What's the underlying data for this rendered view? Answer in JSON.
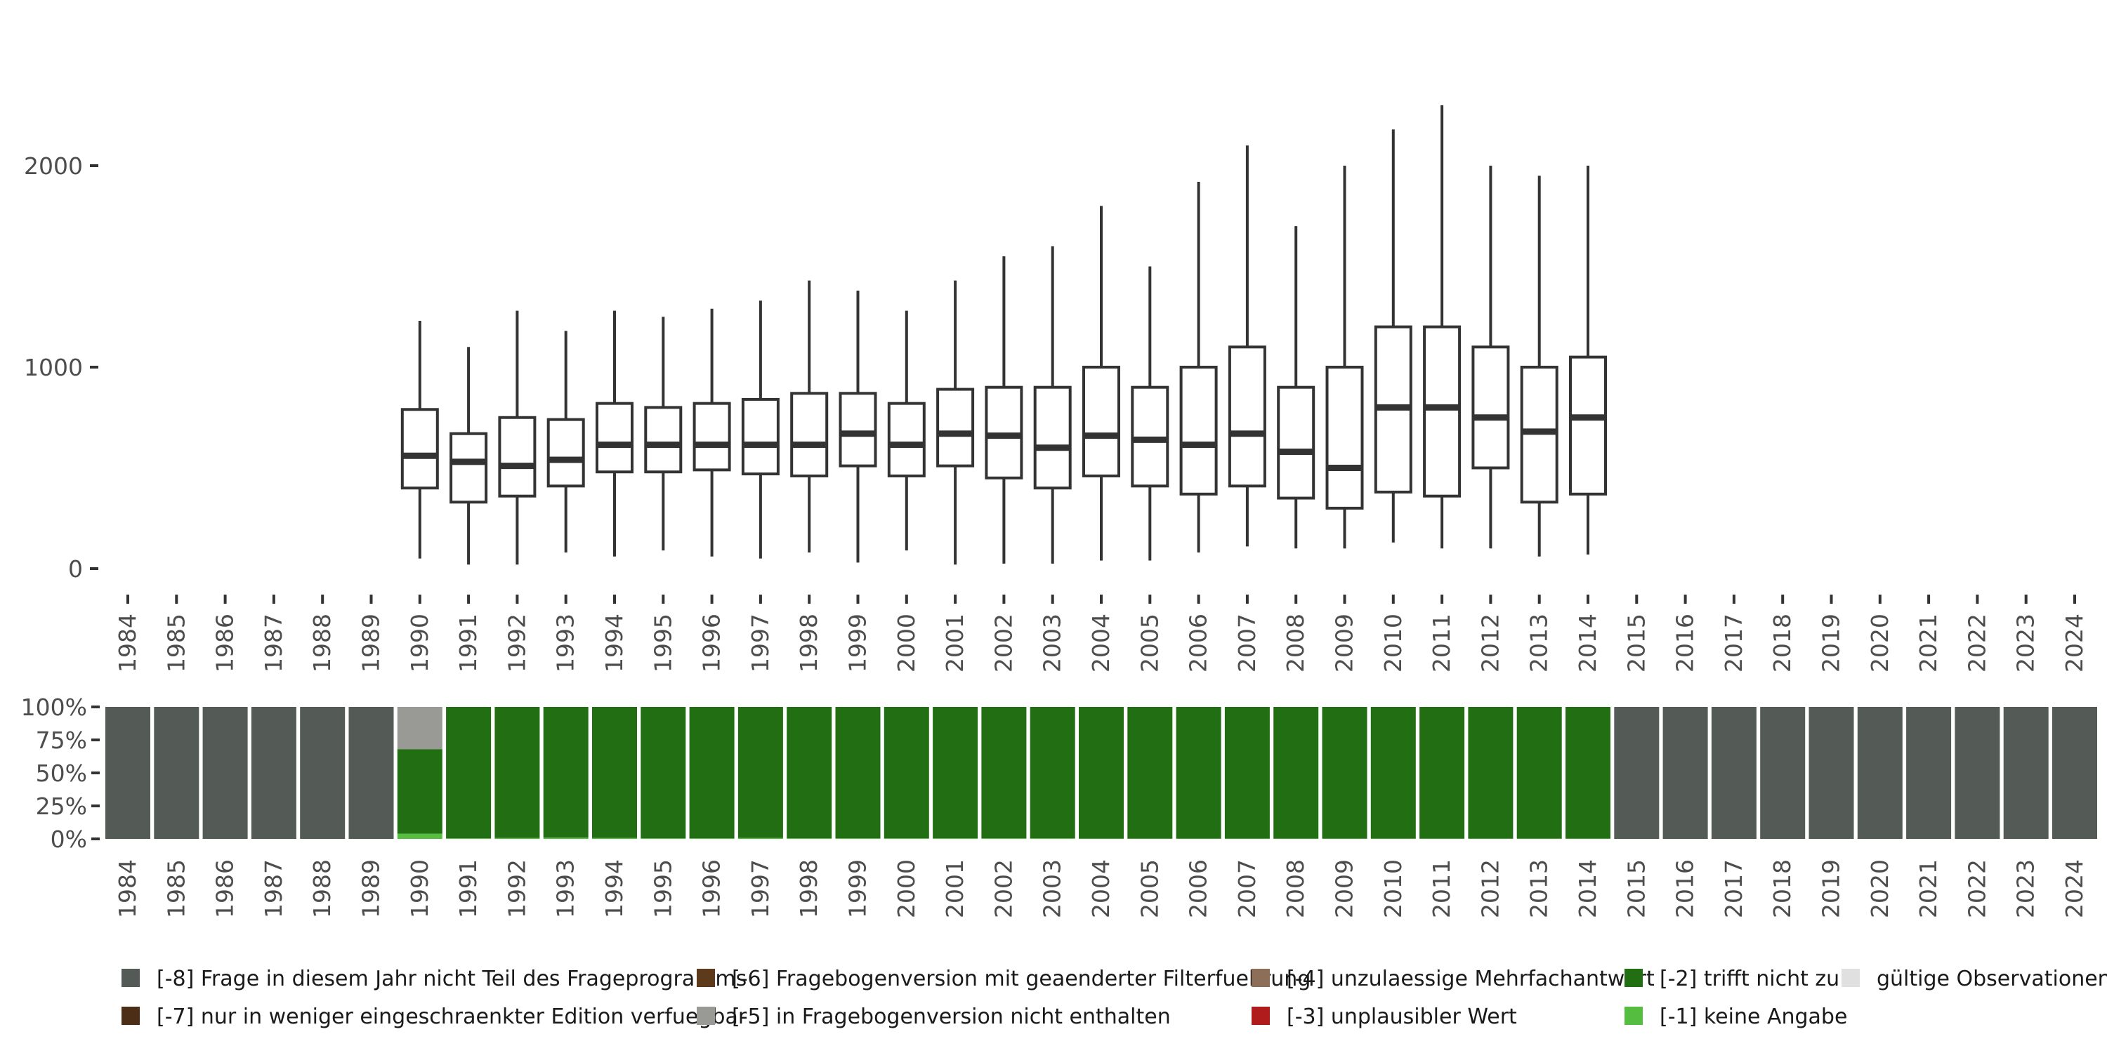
{
  "chart_data": [
    {
      "type": "boxplot",
      "title": "",
      "xlabel": "",
      "ylabel": "",
      "ylim": [
        0,
        2400
      ],
      "y_ticks": [
        {
          "value": 0,
          "label": "0"
        },
        {
          "value": 1000,
          "label": "1000"
        },
        {
          "value": 2000,
          "label": "2000"
        }
      ],
      "grid": false,
      "categories": [
        "1984",
        "1985",
        "1986",
        "1987",
        "1988",
        "1989",
        "1990",
        "1991",
        "1992",
        "1993",
        "1994",
        "1995",
        "1996",
        "1997",
        "1998",
        "1999",
        "2000",
        "2001",
        "2002",
        "2003",
        "2004",
        "2005",
        "2006",
        "2007",
        "2008",
        "2009",
        "2010",
        "2011",
        "2012",
        "2013",
        "2014",
        "2015",
        "2016",
        "2017",
        "2018",
        "2019",
        "2020",
        "2021",
        "2022",
        "2023",
        "2024"
      ],
      "boxes": [
        {
          "year": "1990",
          "min": 50,
          "q1": 400,
          "median": 560,
          "q3": 790,
          "max": 1230
        },
        {
          "year": "1991",
          "min": 20,
          "q1": 330,
          "median": 530,
          "q3": 670,
          "max": 1100
        },
        {
          "year": "1992",
          "min": 20,
          "q1": 360,
          "median": 510,
          "q3": 750,
          "max": 1280
        },
        {
          "year": "1993",
          "min": 80,
          "q1": 410,
          "median": 540,
          "q3": 740,
          "max": 1180
        },
        {
          "year": "1994",
          "min": 60,
          "q1": 480,
          "median": 615,
          "q3": 820,
          "max": 1280
        },
        {
          "year": "1995",
          "min": 90,
          "q1": 480,
          "median": 615,
          "q3": 800,
          "max": 1250
        },
        {
          "year": "1996",
          "min": 60,
          "q1": 490,
          "median": 615,
          "q3": 820,
          "max": 1290
        },
        {
          "year": "1997",
          "min": 50,
          "q1": 470,
          "median": 615,
          "q3": 840,
          "max": 1330
        },
        {
          "year": "1998",
          "min": 80,
          "q1": 460,
          "median": 615,
          "q3": 870,
          "max": 1430
        },
        {
          "year": "1999",
          "min": 30,
          "q1": 510,
          "median": 670,
          "q3": 870,
          "max": 1380
        },
        {
          "year": "2000",
          "min": 90,
          "q1": 460,
          "median": 615,
          "q3": 820,
          "max": 1280
        },
        {
          "year": "2001",
          "min": 20,
          "q1": 510,
          "median": 670,
          "q3": 890,
          "max": 1430
        },
        {
          "year": "2002",
          "min": 25,
          "q1": 450,
          "median": 660,
          "q3": 900,
          "max": 1550
        },
        {
          "year": "2003",
          "min": 25,
          "q1": 400,
          "median": 600,
          "q3": 900,
          "max": 1600
        },
        {
          "year": "2004",
          "min": 40,
          "q1": 460,
          "median": 660,
          "q3": 1000,
          "max": 1800
        },
        {
          "year": "2005",
          "min": 40,
          "q1": 410,
          "median": 640,
          "q3": 900,
          "max": 1500
        },
        {
          "year": "2006",
          "min": 80,
          "q1": 370,
          "median": 615,
          "q3": 1000,
          "max": 1920
        },
        {
          "year": "2007",
          "min": 110,
          "q1": 410,
          "median": 670,
          "q3": 1100,
          "max": 2100
        },
        {
          "year": "2008",
          "min": 100,
          "q1": 350,
          "median": 580,
          "q3": 900,
          "max": 1700
        },
        {
          "year": "2009",
          "min": 100,
          "q1": 300,
          "median": 500,
          "q3": 1000,
          "max": 2000
        },
        {
          "year": "2010",
          "min": 130,
          "q1": 380,
          "median": 800,
          "q3": 1200,
          "max": 2180
        },
        {
          "year": "2011",
          "min": 100,
          "q1": 360,
          "median": 800,
          "q3": 1200,
          "max": 2300
        },
        {
          "year": "2012",
          "min": 100,
          "q1": 500,
          "median": 750,
          "q3": 1100,
          "max": 2000
        },
        {
          "year": "2013",
          "min": 60,
          "q1": 330,
          "median": 680,
          "q3": 1000,
          "max": 1950
        },
        {
          "year": "2014",
          "min": 70,
          "q1": 370,
          "median": 750,
          "q3": 1050,
          "max": 2000
        }
      ]
    },
    {
      "type": "stacked-bar",
      "title": "",
      "xlabel": "",
      "ylabel": "",
      "ylim": [
        0,
        100
      ],
      "y_ticks": [
        {
          "value": 0,
          "label": "0%"
        },
        {
          "value": 25,
          "label": "25%"
        },
        {
          "value": 50,
          "label": "50%"
        },
        {
          "value": 75,
          "label": "75%"
        },
        {
          "value": 100,
          "label": "100%"
        }
      ],
      "categories": [
        "1984",
        "1985",
        "1986",
        "1987",
        "1988",
        "1989",
        "1990",
        "1991",
        "1992",
        "1993",
        "1994",
        "1995",
        "1996",
        "1997",
        "1998",
        "1999",
        "2000",
        "2001",
        "2002",
        "2003",
        "2004",
        "2005",
        "2006",
        "2007",
        "2008",
        "2009",
        "2010",
        "2011",
        "2012",
        "2013",
        "2014",
        "2015",
        "2016",
        "2017",
        "2018",
        "2019",
        "2020",
        "2021",
        "2022",
        "2023",
        "2024"
      ],
      "series": [
        {
          "code": "-1",
          "name": "[-1] keine Angabe",
          "color": "#55bd3f",
          "values": [
            0,
            0,
            0,
            0,
            0,
            0,
            4,
            0.5,
            0.8,
            1,
            0.8,
            0.5,
            0.5,
            0.8,
            0.5,
            0.5,
            0.5,
            0.5,
            0.5,
            0.5,
            0.3,
            0.3,
            0.3,
            0.3,
            0.3,
            0.3,
            0.3,
            0.3,
            0.3,
            0.3,
            0.3,
            0,
            0,
            0,
            0,
            0,
            0,
            0,
            0,
            0,
            0
          ]
        },
        {
          "code": "-2",
          "name": "[-2] trifft nicht zu",
          "color": "#226e12",
          "values": [
            0,
            0,
            0,
            0,
            0,
            0,
            64,
            99.5,
            99.2,
            99,
            99.2,
            99.5,
            99.5,
            99.2,
            99.5,
            99.5,
            99.5,
            99.5,
            99.5,
            99.5,
            99.7,
            99.7,
            99.7,
            99.7,
            99.7,
            99.7,
            99.7,
            99.7,
            99.7,
            99.7,
            99.7,
            0,
            0,
            0,
            0,
            0,
            0,
            0,
            0,
            0,
            0
          ]
        },
        {
          "code": "-5",
          "name": "[-5] in Fragebogenversion nicht enthalten",
          "color": "#999a96",
          "values": [
            0,
            0,
            0,
            0,
            0,
            0,
            32,
            0,
            0,
            0,
            0,
            0,
            0,
            0,
            0,
            0,
            0,
            0,
            0,
            0,
            0,
            0,
            0,
            0,
            0,
            0,
            0,
            0,
            0,
            0,
            0,
            0,
            0,
            0,
            0,
            0,
            0,
            0,
            0,
            0,
            0
          ]
        },
        {
          "code": "-8",
          "name": "[-8] Frage in diesem Jahr nicht Teil des Frageprogramms",
          "color": "#545a55",
          "values": [
            100,
            100,
            100,
            100,
            100,
            100,
            0,
            0,
            0,
            0,
            0,
            0,
            0,
            0,
            0,
            0,
            0,
            0,
            0,
            0,
            0,
            0,
            0,
            0,
            0,
            0,
            0,
            0,
            0,
            0,
            0,
            100,
            100,
            100,
            100,
            100,
            100,
            100,
            100,
            100,
            100
          ]
        }
      ],
      "legend": [
        {
          "label": "[-8] Frage in diesem Jahr nicht Teil des Frageprogramms",
          "color": "#545a55"
        },
        {
          "label": "[-7] nur in weniger eingeschraenkter Edition verfuegbar",
          "color": "#4b2e15"
        },
        {
          "label": "[-6] Fragebogenversion mit geaenderter Filterfuehrung",
          "color": "#5e3a1c"
        },
        {
          "label": "[-5] in Fragebogenversion nicht enthalten",
          "color": "#999a96"
        },
        {
          "label": "[-4] unzulaessige Mehrfachantwort",
          "color": "#8d6e58"
        },
        {
          "label": "[-3] unplausibler Wert",
          "color": "#b01c1c"
        },
        {
          "label": "[-2] trifft nicht zu",
          "color": "#226e12"
        },
        {
          "label": "[-1] keine Angabe",
          "color": "#55bd3f"
        },
        {
          "label": "gültige Observationen",
          "color": "#e0e0e0"
        }
      ],
      "legend_position": "bottom"
    }
  ]
}
